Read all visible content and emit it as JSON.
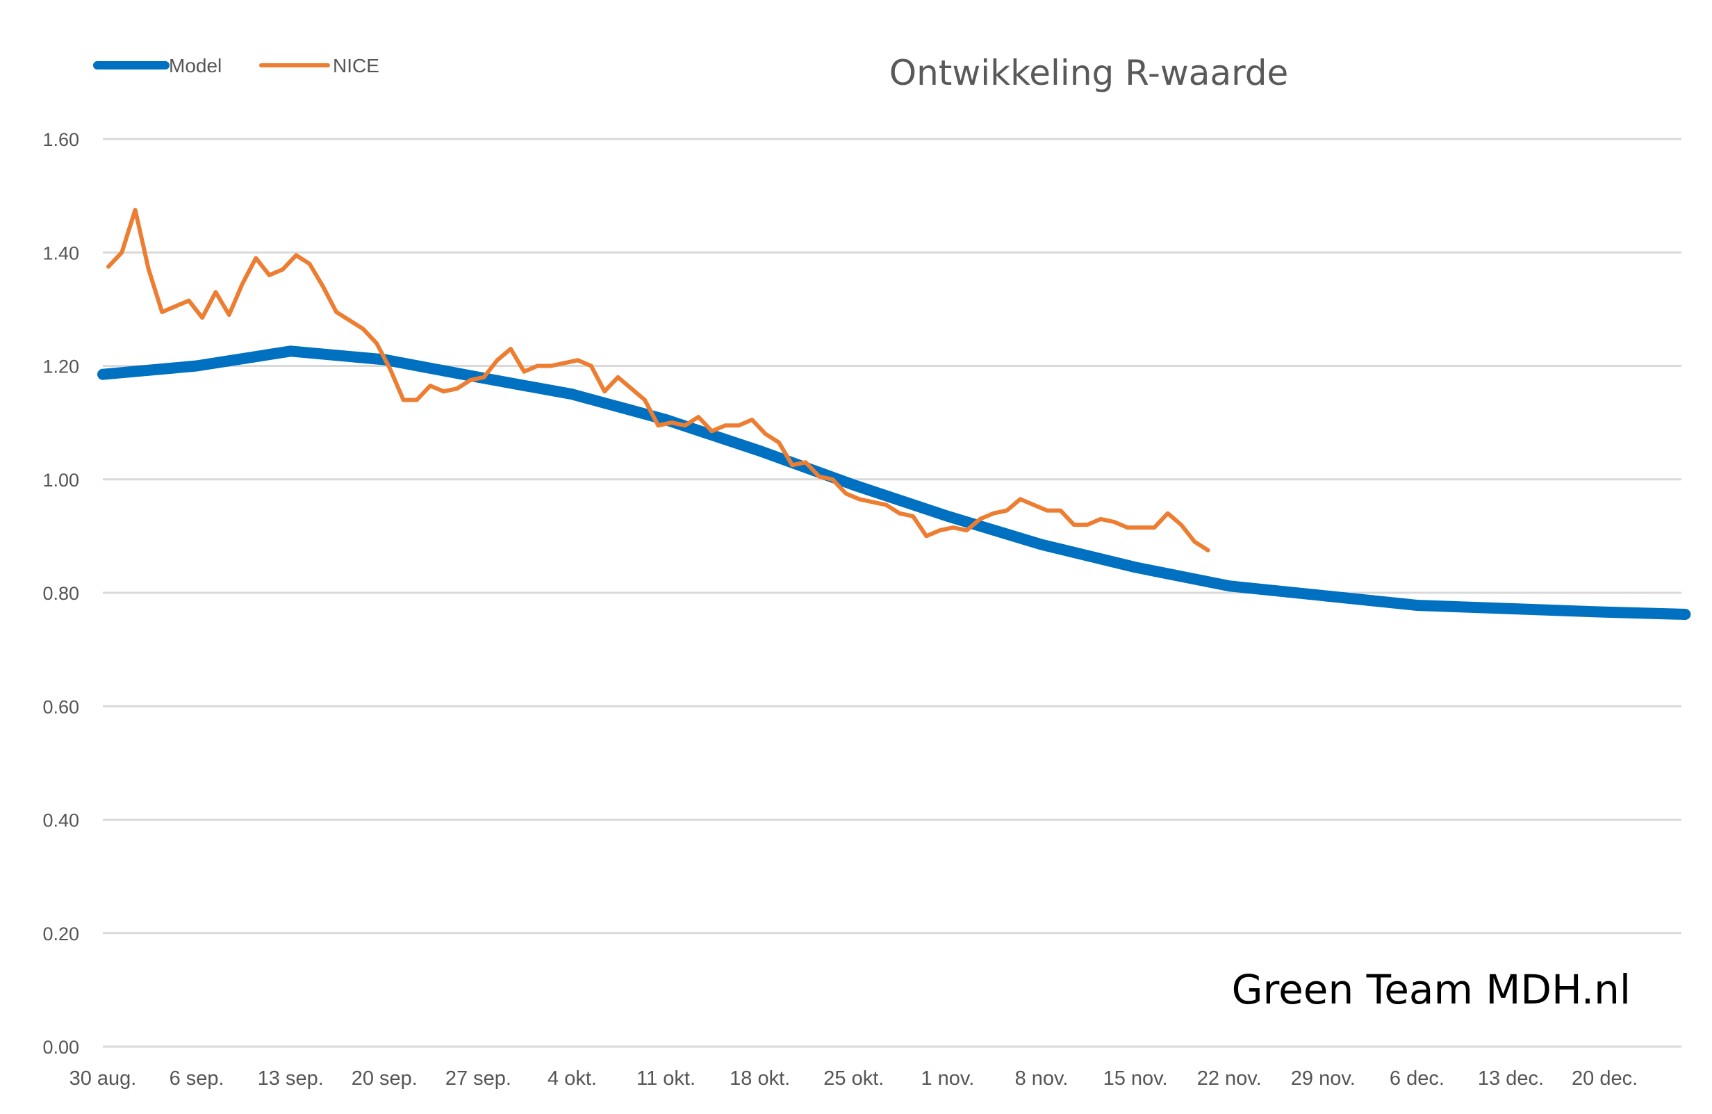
{
  "chart_data": {
    "type": "line",
    "title": "Ontwikkeling R-waarde",
    "xlabel": "",
    "ylabel": "",
    "x_start": "30 aug.",
    "x_tick_labels": [
      "30 aug.",
      "6 sep.",
      "13 sep.",
      "20 sep.",
      "27 sep.",
      "4 okt.",
      "11 okt.",
      "18 okt.",
      "25 okt.",
      "1 nov.",
      "8 nov.",
      "15 nov.",
      "22 nov.",
      "29 nov.",
      "6 dec.",
      "13 dec.",
      "20 dec."
    ],
    "y_tick_labels": [
      "0.00",
      "0.20",
      "0.40",
      "0.60",
      "0.80",
      "1.00",
      "1.20",
      "1.40",
      "1.60"
    ],
    "ylim": [
      0,
      1.6
    ],
    "grid": true,
    "legend": "top-left",
    "series": [
      {
        "name": "Model",
        "color": "#0070C0",
        "points": [
          [
            "30 aug.",
            1.185
          ],
          [
            "6 sep.",
            1.2
          ],
          [
            "13 sep.",
            1.226
          ],
          [
            "20 sep.",
            1.211
          ],
          [
            "27 sep.",
            1.18
          ],
          [
            "4 okt.",
            1.15
          ],
          [
            "11 okt.",
            1.105
          ],
          [
            "18 okt.",
            1.05
          ],
          [
            "25 okt.",
            0.99
          ],
          [
            "1 nov.",
            0.935
          ],
          [
            "8 nov.",
            0.885
          ],
          [
            "15 nov.",
            0.845
          ],
          [
            "22 nov.",
            0.812
          ],
          [
            "29 nov.",
            0.795
          ],
          [
            "6 dec.",
            0.778
          ],
          [
            "13 dec.",
            0.772
          ],
          [
            "20 dec.",
            0.766
          ],
          [
            "26 dec.",
            0.762
          ]
        ]
      },
      {
        "name": "NICE",
        "color": "#ED7D31",
        "values": [
          1.375,
          1.4,
          1.475,
          1.37,
          1.295,
          1.305,
          1.315,
          1.285,
          1.33,
          1.29,
          1.345,
          1.39,
          1.36,
          1.37,
          1.395,
          1.38,
          1.34,
          1.295,
          1.28,
          1.265,
          1.24,
          1.195,
          1.14,
          1.14,
          1.165,
          1.155,
          1.16,
          1.175,
          1.18,
          1.21,
          1.23,
          1.19,
          1.2,
          1.2,
          1.205,
          1.21,
          1.2,
          1.155,
          1.18,
          1.16,
          1.14,
          1.095,
          1.1,
          1.095,
          1.11,
          1.085,
          1.095,
          1.095,
          1.105,
          1.08,
          1.065,
          1.025,
          1.03,
          1.005,
          1.0,
          0.975,
          0.965,
          0.96,
          0.955,
          0.94,
          0.935,
          0.9,
          0.91,
          0.915,
          0.91,
          0.93,
          0.94,
          0.945,
          0.965,
          0.955,
          0.945,
          0.945,
          0.92,
          0.92,
          0.93,
          0.925,
          0.915,
          0.915,
          0.915,
          0.94,
          0.92,
          0.89,
          0.875
        ]
      }
    ]
  },
  "watermark": "Green Team MDH.nl"
}
